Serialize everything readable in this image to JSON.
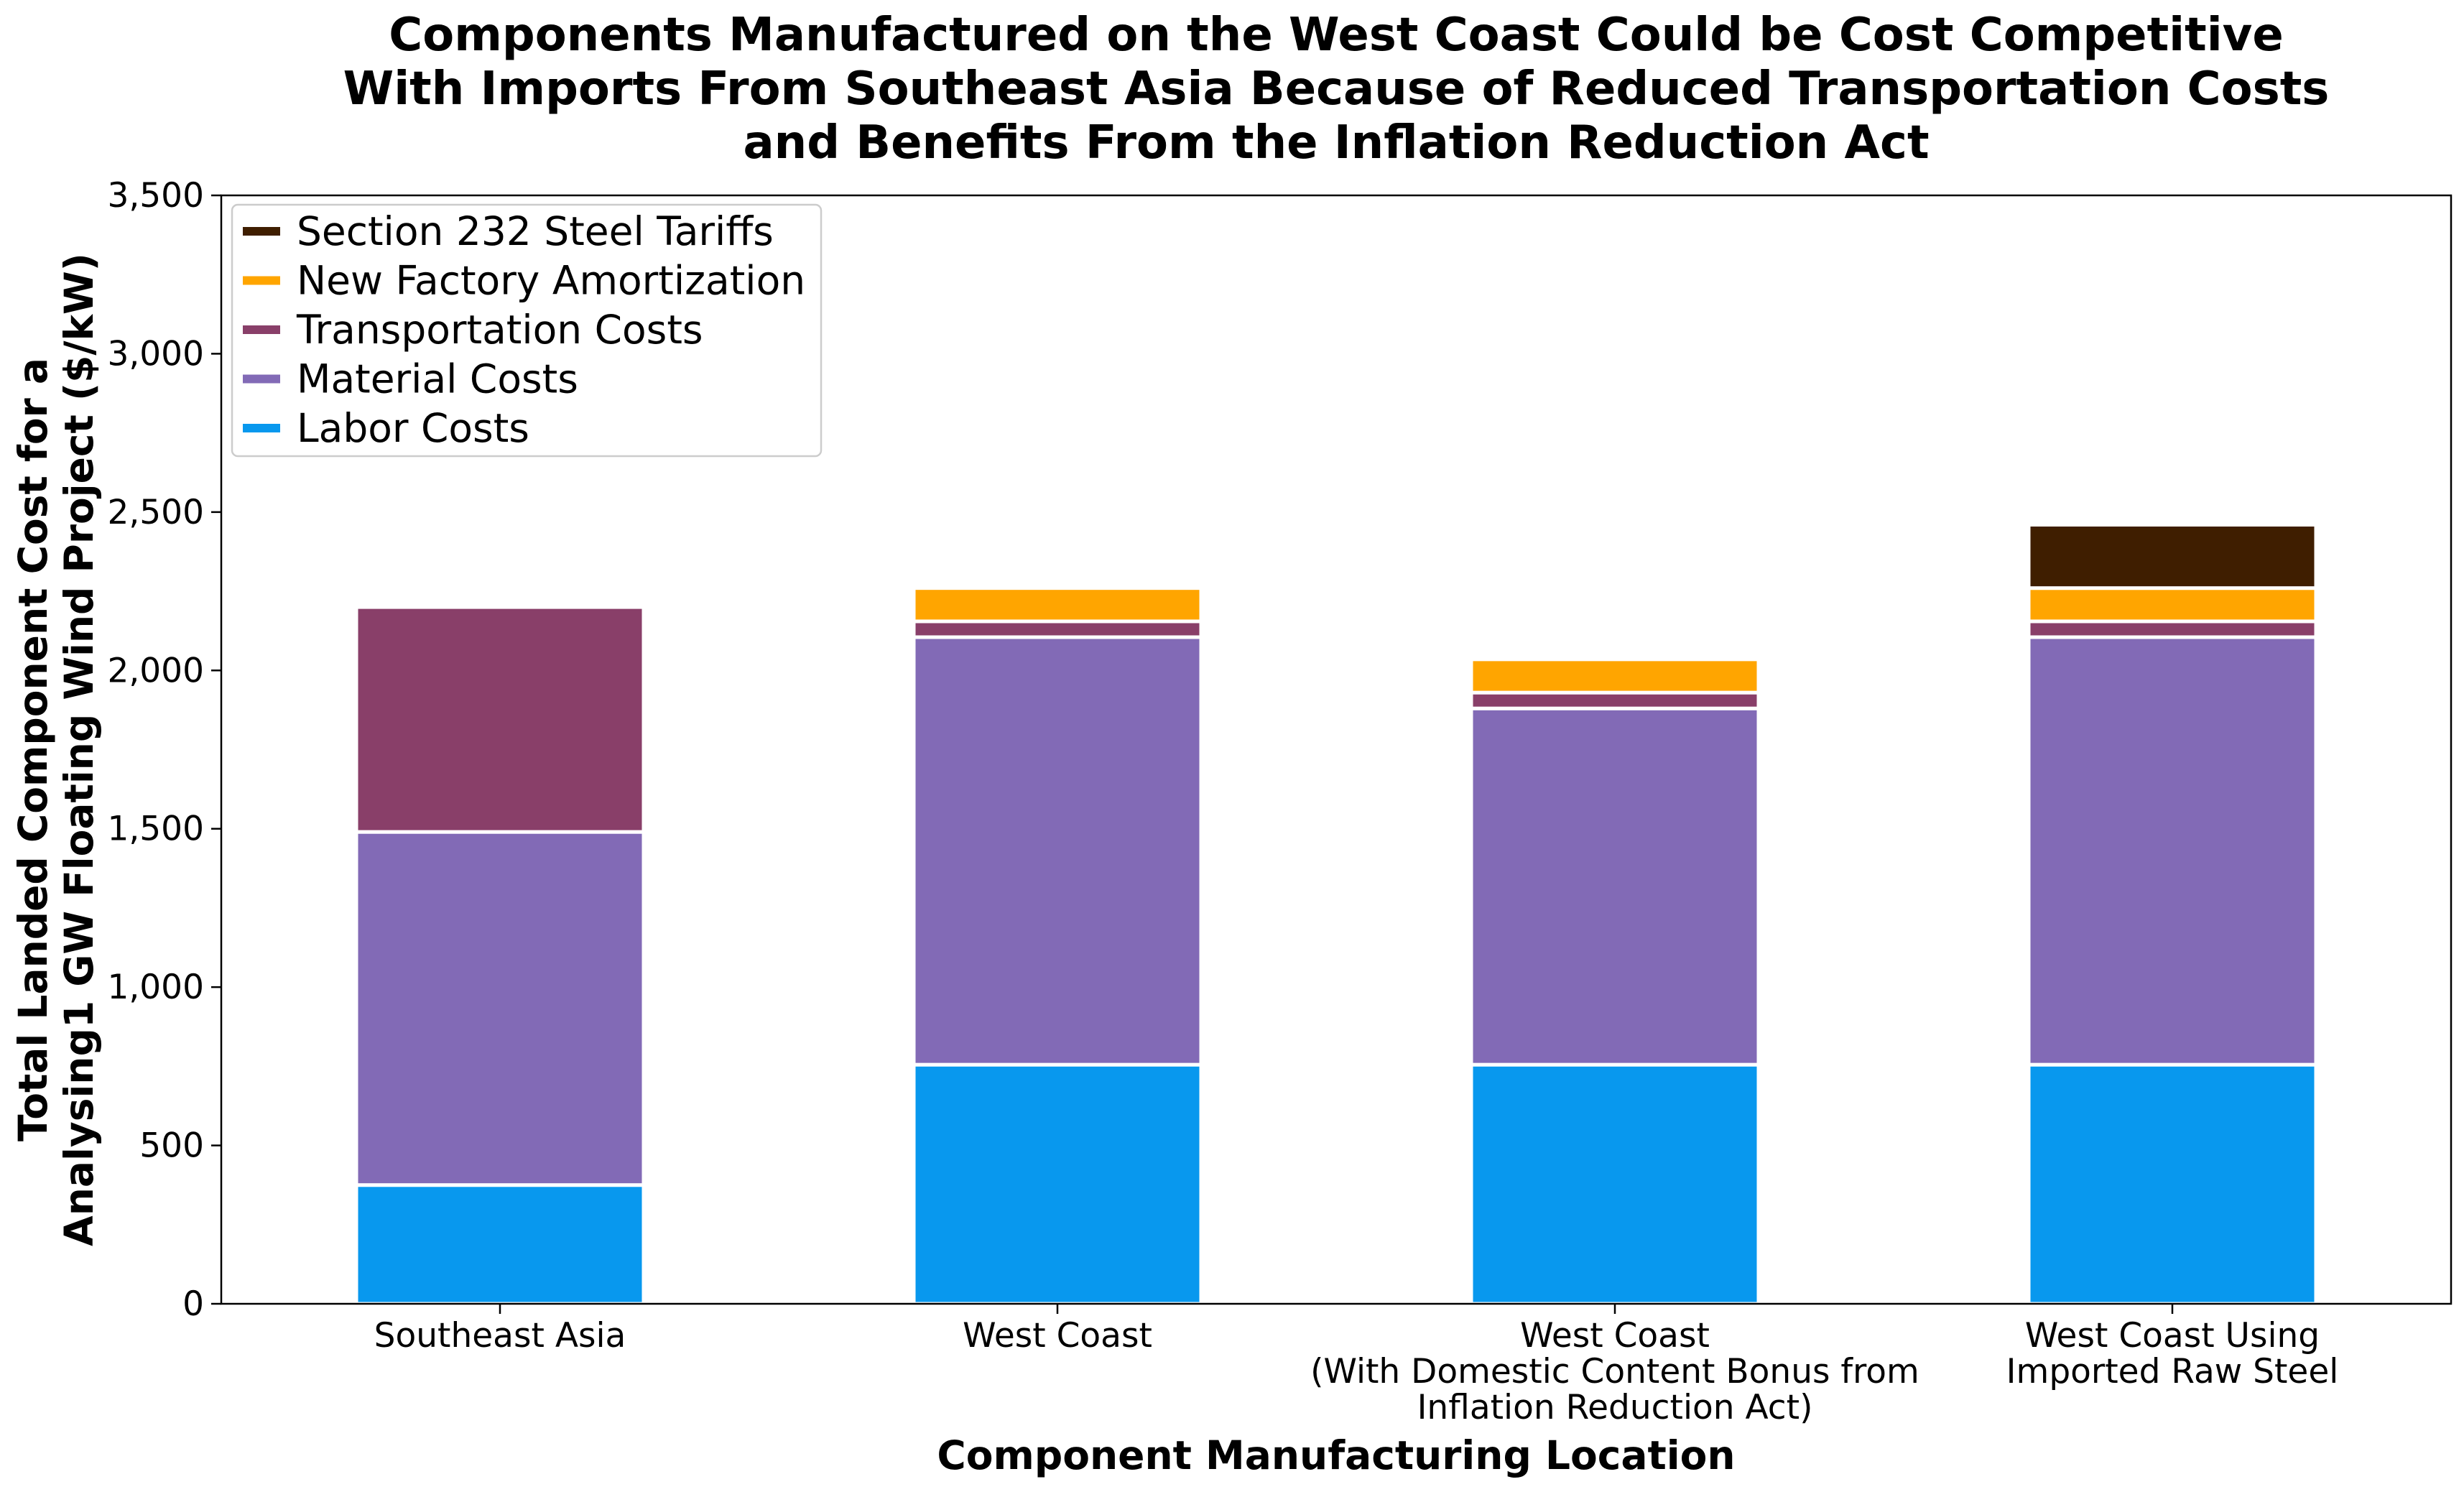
{
  "chart_data": {
    "type": "bar",
    "stacked": true,
    "title": [
      "Components Manufactured on the West Coast Could be Cost Competitive",
      "With Imports From Southeast Asia Because of Reduced Transportation Costs",
      "and Benefits From the Inflation Reduction Act"
    ],
    "xlabel": "Component Manufacturing Location",
    "ylabel": [
      "Total Landed Component Cost for a",
      "Analysing1 GW Floating Wind Project ($/kW)"
    ],
    "categories": [
      [
        "Southeast Asia"
      ],
      [
        "West Coast"
      ],
      [
        "West Coast",
        "(With Domestic Content Bonus from",
        "Inflation Reduction Act)"
      ],
      [
        "West Coast Using",
        "Imported Raw Steel"
      ]
    ],
    "ylim": [
      0,
      3500
    ],
    "yticks": [
      0,
      500,
      1000,
      1500,
      2000,
      2500,
      3000,
      3500
    ],
    "ytick_labels": [
      "0",
      "500",
      "1,000",
      "1,500",
      "2,000",
      "2,500",
      "3,000",
      "3,500"
    ],
    "grid": false,
    "legend_position": "top-left",
    "series": [
      {
        "name": "Labor Costs",
        "color": "#0898ee",
        "values": [
          375,
          755,
          755,
          755
        ]
      },
      {
        "name": "Material Costs",
        "color": "#826ab6",
        "values": [
          1115,
          1350,
          1125,
          1350
        ]
      },
      {
        "name": "Transportation Costs",
        "color": "#893f69",
        "values": [
          710,
          50,
          50,
          50
        ]
      },
      {
        "name": "New Factory Amortization",
        "color": "#ffa500",
        "values": [
          0,
          105,
          105,
          105
        ]
      },
      {
        "name": "Section 232 Steel Tariffs",
        "color": "#3f1e00",
        "values": [
          0,
          0,
          0,
          200
        ]
      }
    ]
  }
}
